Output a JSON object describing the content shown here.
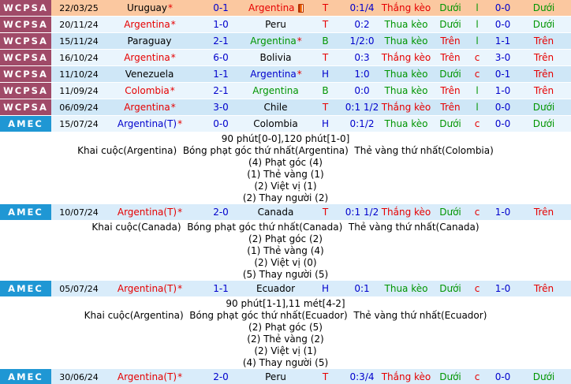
{
  "palette": {
    "red": "#e60000",
    "green": "#009500",
    "blue": "#0000cd",
    "black": "#000000",
    "score_blue": "#0000cc",
    "tag_wcpsa_bg": "#a04a68",
    "tag_amec_bg": "#1f97d4",
    "row_peach": "#fbc8a0",
    "row_pale": "#eaf5fd",
    "row_mid": "#cfe7f7",
    "row_amec": "#d9ecfa",
    "detail_bg": "#ffffff",
    "bottom_bar": "#143d7c"
  },
  "table": {
    "rows": [
      {
        "league": "WCPSA",
        "league_bg_key": "tag_wcpsa_bg",
        "bg_key": "row_peach",
        "date": "22/03/25",
        "home": {
          "name": "Uruguay",
          "color": "black",
          "star": "*"
        },
        "score": "0-1",
        "away": {
          "name": "Argentina",
          "color": "red",
          "star": "",
          "card_icon": true
        },
        "result_letter": {
          "text": "T",
          "color": "red"
        },
        "handicap": "0:1/4",
        "handicap_result": {
          "text": "Thắng kèo",
          "color": "red"
        },
        "ou_result": {
          "text": "Dưới",
          "color": "green"
        },
        "flag_letter": {
          "text": "l",
          "color": "green"
        },
        "secondary_score": "0-0",
        "ou_result2": {
          "text": "Dưới",
          "color": "green"
        }
      },
      {
        "league": "WCPSA",
        "league_bg_key": "tag_wcpsa_bg",
        "bg_key": "row_pale",
        "date": "20/11/24",
        "home": {
          "name": "Argentina",
          "color": "red",
          "star": "*"
        },
        "score": "1-0",
        "away": {
          "name": "Peru",
          "color": "black",
          "star": "",
          "card_icon": false
        },
        "result_letter": {
          "text": "T",
          "color": "red"
        },
        "handicap": "0:2",
        "handicap_result": {
          "text": "Thua kèo",
          "color": "green"
        },
        "ou_result": {
          "text": "Dưới",
          "color": "green"
        },
        "flag_letter": {
          "text": "l",
          "color": "green"
        },
        "secondary_score": "0-0",
        "ou_result2": {
          "text": "Dưới",
          "color": "green"
        }
      },
      {
        "league": "WCPSA",
        "league_bg_key": "tag_wcpsa_bg",
        "bg_key": "row_mid",
        "date": "15/11/24",
        "home": {
          "name": "Paraguay",
          "color": "black",
          "star": ""
        },
        "score": "2-1",
        "away": {
          "name": "Argentina",
          "color": "green",
          "star": "*",
          "card_icon": false
        },
        "result_letter": {
          "text": "B",
          "color": "green"
        },
        "handicap": "1/2:0",
        "handicap_result": {
          "text": "Thua kèo",
          "color": "green"
        },
        "ou_result": {
          "text": "Trên",
          "color": "red"
        },
        "flag_letter": {
          "text": "l",
          "color": "green"
        },
        "secondary_score": "1-1",
        "ou_result2": {
          "text": "Trên",
          "color": "red"
        }
      },
      {
        "league": "WCPSA",
        "league_bg_key": "tag_wcpsa_bg",
        "bg_key": "row_pale",
        "date": "16/10/24",
        "home": {
          "name": "Argentina",
          "color": "red",
          "star": "*"
        },
        "score": "6-0",
        "away": {
          "name": "Bolivia",
          "color": "black",
          "star": "",
          "card_icon": false
        },
        "result_letter": {
          "text": "T",
          "color": "red"
        },
        "handicap": "0:3",
        "handicap_result": {
          "text": "Thắng kèo",
          "color": "red"
        },
        "ou_result": {
          "text": "Trên",
          "color": "red"
        },
        "flag_letter": {
          "text": "c",
          "color": "red"
        },
        "secondary_score": "3-0",
        "ou_result2": {
          "text": "Trên",
          "color": "red"
        }
      },
      {
        "league": "WCPSA",
        "league_bg_key": "tag_wcpsa_bg",
        "bg_key": "row_mid",
        "date": "11/10/24",
        "home": {
          "name": "Venezuela",
          "color": "black",
          "star": ""
        },
        "score": "1-1",
        "away": {
          "name": "Argentina",
          "color": "blue",
          "star": "*",
          "card_icon": false
        },
        "result_letter": {
          "text": "H",
          "color": "blue"
        },
        "handicap": "1:0",
        "handicap_result": {
          "text": "Thua kèo",
          "color": "green"
        },
        "ou_result": {
          "text": "Dưới",
          "color": "green"
        },
        "flag_letter": {
          "text": "c",
          "color": "red"
        },
        "secondary_score": "0-1",
        "ou_result2": {
          "text": "Trên",
          "color": "red"
        }
      },
      {
        "league": "WCPSA",
        "league_bg_key": "tag_wcpsa_bg",
        "bg_key": "row_pale",
        "date": "11/09/24",
        "home": {
          "name": "Colombia",
          "color": "red",
          "star": "*"
        },
        "score": "2-1",
        "away": {
          "name": "Argentina",
          "color": "green",
          "star": "",
          "card_icon": false
        },
        "result_letter": {
          "text": "B",
          "color": "green"
        },
        "handicap": "0:0",
        "handicap_result": {
          "text": "Thua kèo",
          "color": "green"
        },
        "ou_result": {
          "text": "Trên",
          "color": "red"
        },
        "flag_letter": {
          "text": "l",
          "color": "green"
        },
        "secondary_score": "1-0",
        "ou_result2": {
          "text": "Trên",
          "color": "red"
        }
      },
      {
        "league": "WCPSA",
        "league_bg_key": "tag_wcpsa_bg",
        "bg_key": "row_mid",
        "date": "06/09/24",
        "home": {
          "name": "Argentina",
          "color": "red",
          "star": "*"
        },
        "score": "3-0",
        "away": {
          "name": "Chile",
          "color": "black",
          "star": "",
          "card_icon": false
        },
        "result_letter": {
          "text": "T",
          "color": "red"
        },
        "handicap": "0:1 1/2",
        "handicap_result": {
          "text": "Thắng kèo",
          "color": "red"
        },
        "ou_result": {
          "text": "Trên",
          "color": "red"
        },
        "flag_letter": {
          "text": "l",
          "color": "green"
        },
        "secondary_score": "0-0",
        "ou_result2": {
          "text": "Dưới",
          "color": "green"
        }
      },
      {
        "league": "AMEC",
        "league_bg_key": "tag_amec_bg",
        "bg_key": "row_pale",
        "date": "15/07/24",
        "home": {
          "name": "Argentina(T)",
          "color": "blue",
          "star": "*"
        },
        "score": "0-0",
        "away": {
          "name": "Colombia",
          "color": "black",
          "star": "",
          "card_icon": false
        },
        "result_letter": {
          "text": "H",
          "color": "blue"
        },
        "handicap": "0:1/2",
        "handicap_result": {
          "text": "Thua kèo",
          "color": "green"
        },
        "ou_result": {
          "text": "Dưới",
          "color": "green"
        },
        "flag_letter": {
          "text": "c",
          "color": "red"
        },
        "secondary_score": "0-0",
        "ou_result2": {
          "text": "Dưới",
          "color": "green"
        },
        "details": [
          "90 phút[0-0],120 phút[1-0]",
          "Khai cuộc(Argentina)  Bóng phạt góc thứ nhất(Argentina)  Thẻ vàng thứ nhất(Colombia)",
          "(4) Phạt góc (4)",
          "(1) Thẻ vàng (1)",
          "(2) Việt vị (1)",
          "(2) Thay người (2)"
        ]
      },
      {
        "league": "AMEC",
        "league_bg_key": "tag_amec_bg",
        "bg_key": "row_amec",
        "date": "10/07/24",
        "home": {
          "name": "Argentina(T)",
          "color": "red",
          "star": "*"
        },
        "score": "2-0",
        "away": {
          "name": "Canada",
          "color": "black",
          "star": "",
          "card_icon": false
        },
        "result_letter": {
          "text": "T",
          "color": "red"
        },
        "handicap": "0:1 1/2",
        "handicap_result": {
          "text": "Thắng kèo",
          "color": "red"
        },
        "ou_result": {
          "text": "Dưới",
          "color": "green"
        },
        "flag_letter": {
          "text": "c",
          "color": "red"
        },
        "secondary_score": "1-0",
        "ou_result2": {
          "text": "Trên",
          "color": "red"
        },
        "details": [
          "Khai cuộc(Canada)  Bóng phạt góc thứ nhất(Canada)  Thẻ vàng thứ nhất(Canada)",
          "(2) Phạt góc (2)",
          "(1) Thẻ vàng (4)",
          "(2) Việt vị (0)",
          "(5) Thay người (5)"
        ]
      },
      {
        "league": "AMEC",
        "league_bg_key": "tag_amec_bg",
        "bg_key": "row_amec",
        "date": "05/07/24",
        "home": {
          "name": "Argentina(T)",
          "color": "red",
          "star": "*"
        },
        "score": "1-1",
        "away": {
          "name": "Ecuador",
          "color": "black",
          "star": "",
          "card_icon": false
        },
        "result_letter": {
          "text": "H",
          "color": "blue"
        },
        "handicap": "0:1",
        "handicap_result": {
          "text": "Thua kèo",
          "color": "green"
        },
        "ou_result": {
          "text": "Dưới",
          "color": "green"
        },
        "flag_letter": {
          "text": "c",
          "color": "red"
        },
        "secondary_score": "1-0",
        "ou_result2": {
          "text": "Trên",
          "color": "red"
        },
        "details": [
          "90 phút[1-1],11 mét[4-2]",
          "Khai cuộc(Argentina)  Bóng phạt góc thứ nhất(Ecuador)  Thẻ vàng thứ nhất(Ecuador)",
          "(2) Phạt góc (5)",
          "(2) Thẻ vàng (2)",
          "(2) Việt vị (1)",
          "(4) Thay người (5)"
        ]
      },
      {
        "league": "AMEC",
        "league_bg_key": "tag_amec_bg",
        "bg_key": "row_amec",
        "date": "30/06/24",
        "home": {
          "name": "Argentina(T)",
          "color": "red",
          "star": "*"
        },
        "score": "2-0",
        "away": {
          "name": "Peru",
          "color": "black",
          "star": "",
          "card_icon": false
        },
        "result_letter": {
          "text": "T",
          "color": "red"
        },
        "handicap": "0:3/4",
        "handicap_result": {
          "text": "Thắng kèo",
          "color": "red"
        },
        "ou_result": {
          "text": "Dưới",
          "color": "green"
        },
        "flag_letter": {
          "text": "c",
          "color": "red"
        },
        "secondary_score": "0-0",
        "ou_result2": {
          "text": "Dưới",
          "color": "green"
        }
      }
    ]
  }
}
